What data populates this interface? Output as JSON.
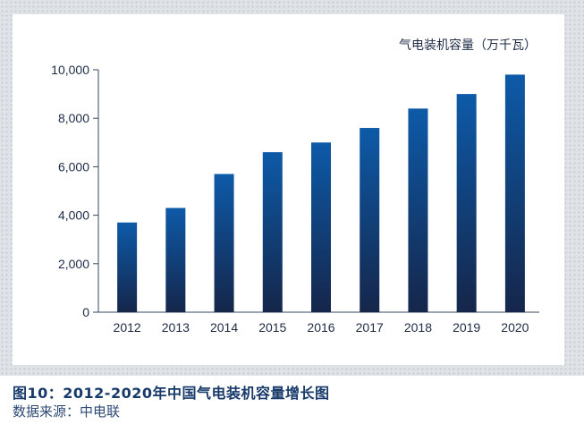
{
  "chart_data": {
    "type": "bar",
    "unit_label": "气电装机容量（万千瓦）",
    "categories": [
      "2012",
      "2013",
      "2014",
      "2015",
      "2016",
      "2017",
      "2018",
      "2019",
      "2020"
    ],
    "values": [
      3700,
      4300,
      5700,
      6600,
      7000,
      7600,
      8400,
      9000,
      9800
    ],
    "ylim": [
      0,
      10000
    ],
    "y_ticks": [
      "0",
      "2,000",
      "4,000",
      "6,000",
      "8,000",
      "10,000"
    ],
    "y_tick_values": [
      0,
      2000,
      4000,
      6000,
      8000,
      10000
    ],
    "grid": false,
    "legend": "none",
    "bar_color_top": "#0d5aa8",
    "bar_color_bottom": "#15264a"
  },
  "caption": "图10：2012-2020年中国气电装机容量增长图",
  "source": "数据来源：中电联"
}
